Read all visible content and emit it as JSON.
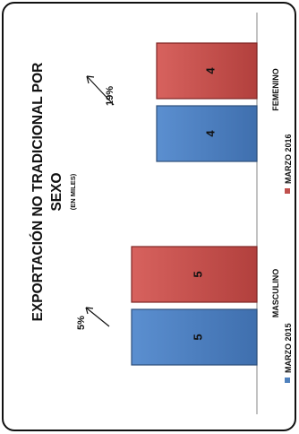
{
  "chart_data": {
    "type": "bar",
    "title_line1": "EXPORTACIÓN NO TRADICIONAL POR",
    "title_line2": "SEXO",
    "subtitle": "(EN MILES)",
    "categories": [
      "MASCULINO",
      "FEMENINO"
    ],
    "series": [
      {
        "name": "MARZO 2015",
        "values": [
          5,
          4
        ],
        "color": "#4f81bd"
      },
      {
        "name": "MARZO 2016",
        "values": [
          5,
          4
        ],
        "color": "#c0504d"
      }
    ],
    "data_labels": [
      [
        "5",
        "4"
      ],
      [
        "5",
        "4"
      ]
    ],
    "growth_labels": [
      "5%",
      "19%"
    ],
    "ylim": [
      0,
      6
    ],
    "orientation": "rotated-90",
    "legend_position": "bottom"
  }
}
